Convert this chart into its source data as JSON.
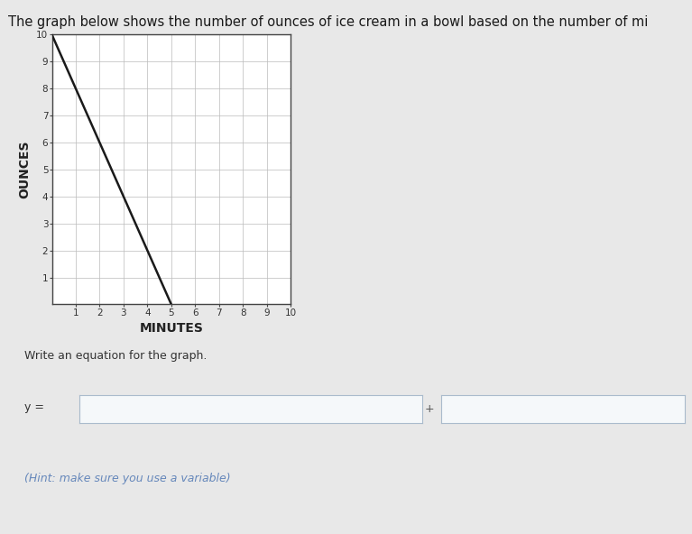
{
  "title": "The graph below shows the number of ounces of ice cream in a bowl based on the number of mi",
  "xlabel": "MINUTES",
  "ylabel": "OUNCES",
  "line_x": [
    0,
    5
  ],
  "line_y": [
    10,
    0
  ],
  "xlim": [
    0,
    10
  ],
  "ylim": [
    0,
    10
  ],
  "xticks": [
    1,
    2,
    3,
    4,
    5,
    6,
    7,
    8,
    9,
    10
  ],
  "yticks": [
    1,
    2,
    3,
    4,
    5,
    6,
    7,
    8,
    9,
    10
  ],
  "line_color": "#1a1a1a",
  "grid_color": "#bbbbbb",
  "axis_color": "#444444",
  "bg_color": "#e8e8e8",
  "write_eq_text": "Write an equation for the graph.",
  "y_eq_label": "y =",
  "plus_label": "+",
  "hint_text": "(Hint: make sure you use a variable)",
  "hint_color": "#6688bb",
  "box_border_color": "#aabbcc",
  "box_fill": "#f5f8fa",
  "title_fontsize": 10.5,
  "label_fontsize": 9,
  "tick_fontsize": 7.5,
  "xlabel_fontsize": 10,
  "write_eq_fontsize": 9,
  "hint_fontsize": 9
}
